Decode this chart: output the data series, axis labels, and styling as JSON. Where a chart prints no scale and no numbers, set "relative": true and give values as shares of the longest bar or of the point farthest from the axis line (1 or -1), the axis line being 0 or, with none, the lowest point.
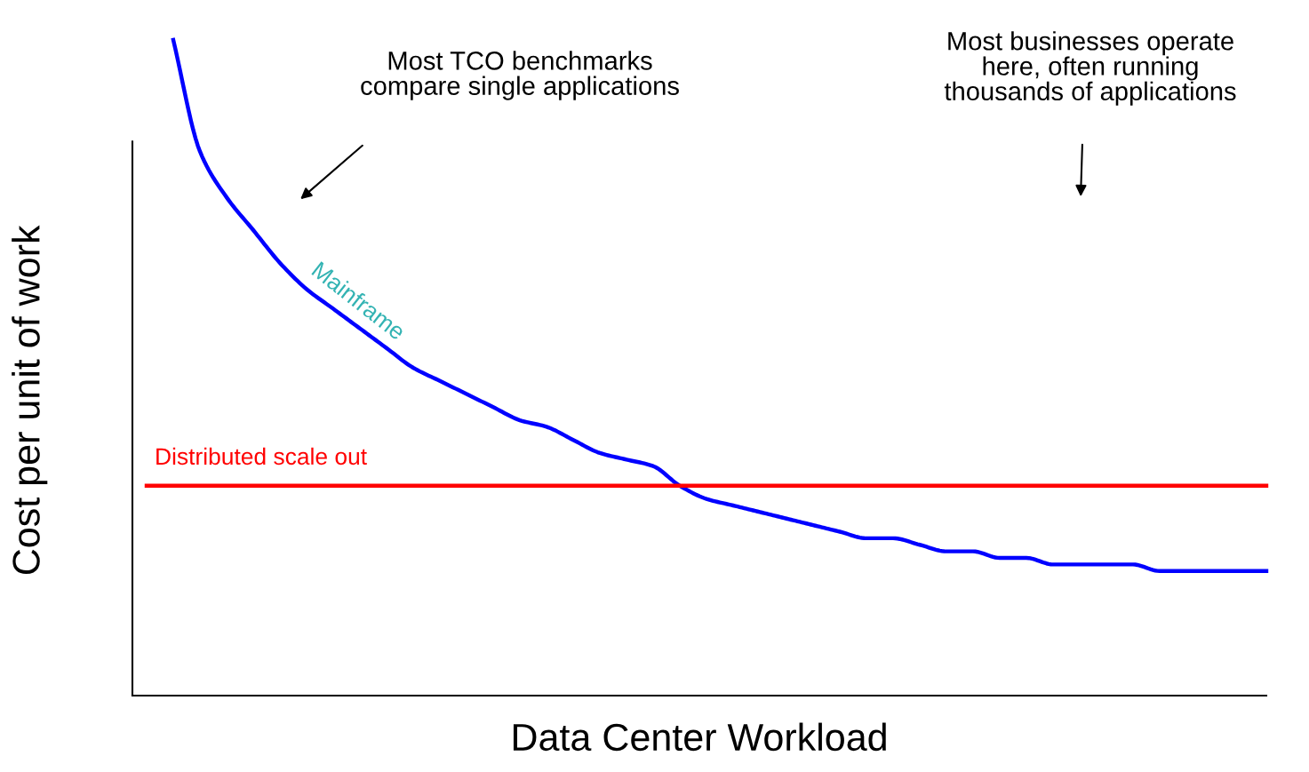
{
  "chart_data": {
    "type": "line",
    "relative": true,
    "xlabel": "Data Center Workload",
    "ylabel": "Cost per unit of work",
    "categories": [
      null,
      null,
      null,
      null,
      null,
      null,
      null,
      null,
      null,
      null,
      null,
      null,
      null,
      null,
      null,
      null,
      null,
      null,
      null,
      null,
      null,
      null,
      null,
      null,
      null,
      null,
      null,
      null,
      null,
      null,
      null,
      null,
      null,
      null,
      null,
      null,
      null,
      null,
      null,
      null,
      null,
      null,
      null
    ],
    "series": [
      {
        "name": "Mainframe",
        "color": "#0000ff",
        "values": [
          null,
          1.0,
          0.83,
          0.76,
          0.71,
          0.66,
          0.62,
          0.59,
          0.56,
          0.53,
          0.5,
          0.48,
          0.46,
          0.44,
          0.42,
          0.41,
          0.39,
          0.37,
          0.36,
          0.35,
          0.32,
          0.3,
          0.29,
          0.28,
          0.27,
          0.26,
          0.25,
          0.24,
          0.24,
          0.23,
          0.22,
          0.22,
          0.21,
          0.21,
          0.2,
          0.2,
          0.2,
          0.2,
          0.19,
          0.19,
          0.19,
          0.19,
          0.19
        ]
      },
      {
        "name": "Distributed scale out",
        "color": "#ff0000",
        "values": [
          0.32,
          0.32,
          0.32,
          0.32,
          0.32,
          0.32,
          0.32,
          0.32,
          0.32,
          0.32,
          0.32,
          0.32,
          0.32,
          0.32,
          0.32,
          0.32,
          0.32,
          0.32,
          0.32,
          0.32,
          0.32,
          0.32,
          0.32,
          0.32,
          0.32,
          0.32,
          0.32,
          0.32,
          0.32,
          0.32,
          0.32,
          0.32,
          0.32,
          0.32,
          0.32,
          0.32,
          0.32,
          0.32,
          0.32,
          0.32,
          0.32,
          0.32,
          0.32
        ]
      }
    ],
    "annotations": [
      "Most TCO benchmarks\ncompare single applications",
      "Most businesses operate\nhere, often running\nthousands of applications"
    ],
    "legend": false,
    "marker": "none",
    "line_style": "solid"
  }
}
